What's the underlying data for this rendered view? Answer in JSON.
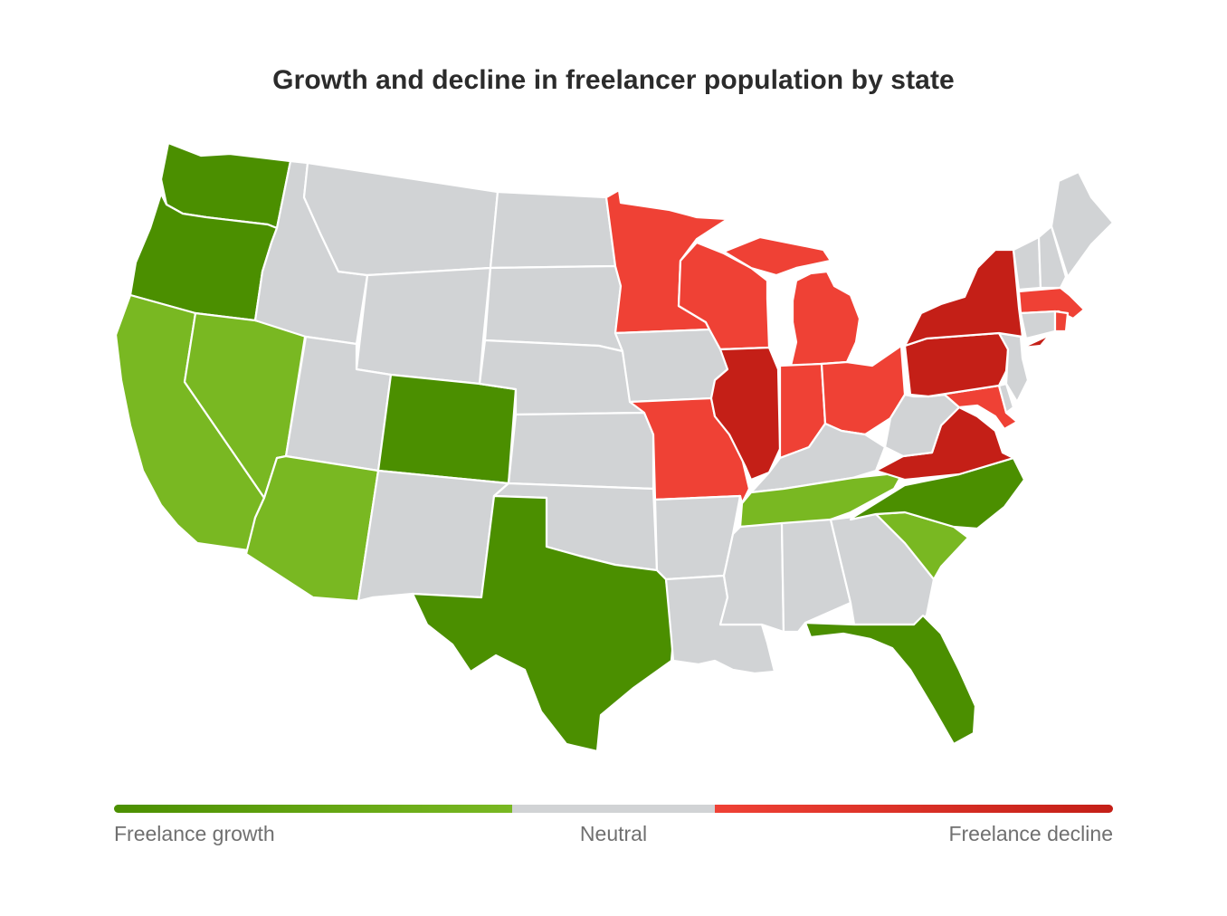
{
  "title": "Growth and decline in freelancer population by state",
  "colors": {
    "strong_growth": "#4b8f00",
    "growth": "#79b822",
    "neutral": "#d1d3d5",
    "decline": "#ef4135",
    "strong_decline": "#c41f17"
  },
  "legend": {
    "growth_label": "Freelance growth",
    "neutral_label": "Neutral",
    "decline_label": "Freelance decline",
    "gradient_stops": [
      "#4b8f00",
      "#79b822",
      "#d1d3d5",
      "#ef4135",
      "#c41f17"
    ]
  },
  "states": {
    "WA": "strong_growth",
    "OR": "strong_growth",
    "CA": "growth",
    "NV": "growth",
    "ID": "neutral",
    "MT": "neutral",
    "WY": "neutral",
    "UT": "neutral",
    "AZ": "growth",
    "CO": "strong_growth",
    "NM": "neutral",
    "ND": "neutral",
    "SD": "neutral",
    "NE": "neutral",
    "KS": "neutral",
    "OK": "neutral",
    "TX": "strong_growth",
    "MN": "decline",
    "IA": "neutral",
    "MO": "decline",
    "AR": "neutral",
    "LA": "neutral",
    "WI": "decline",
    "IL": "strong_decline",
    "MI": "decline",
    "IN": "decline",
    "OH": "decline",
    "KY": "neutral",
    "TN": "growth",
    "MS": "neutral",
    "AL": "neutral",
    "GA": "neutral",
    "FL": "strong_growth",
    "SC": "growth",
    "NC": "strong_growth",
    "VA": "strong_decline",
    "WV": "neutral",
    "MD": "decline",
    "DE": "neutral",
    "PA": "strong_decline",
    "NJ": "neutral",
    "NY": "strong_decline",
    "CT": "neutral",
    "RI": "decline",
    "MA": "decline",
    "VT": "neutral",
    "NH": "neutral",
    "ME": "neutral"
  }
}
